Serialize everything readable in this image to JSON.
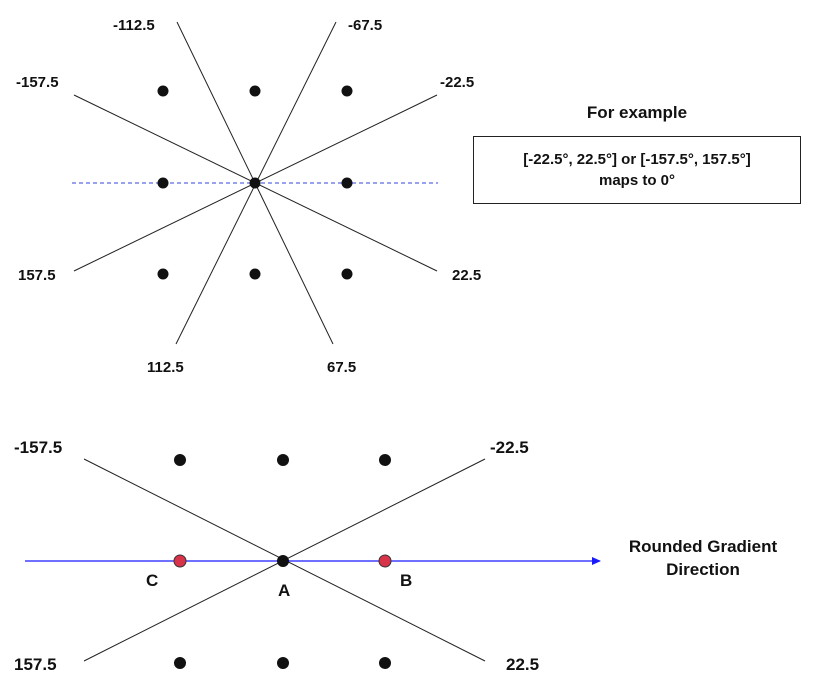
{
  "top_diagram": {
    "angle_labels": [
      "-112.5",
      "-67.5",
      "-157.5",
      "-22.5",
      "157.5",
      "22.5",
      "112.5",
      "67.5"
    ]
  },
  "example": {
    "title": "For example",
    "line1": "[-22.5°, 22.5°] or [-157.5°, 157.5°]",
    "line2": "maps to 0°"
  },
  "bottom_diagram": {
    "angle_labels": [
      "-157.5",
      "-22.5",
      "157.5",
      "22.5"
    ],
    "point_labels": {
      "center": "A",
      "right": "B",
      "left": "C"
    },
    "arrow_label_line1": "Rounded Gradient",
    "arrow_label_line2": "Direction",
    "colors": {
      "arrow": "#1a1aff",
      "neighbor_points": "#d9334a"
    }
  }
}
